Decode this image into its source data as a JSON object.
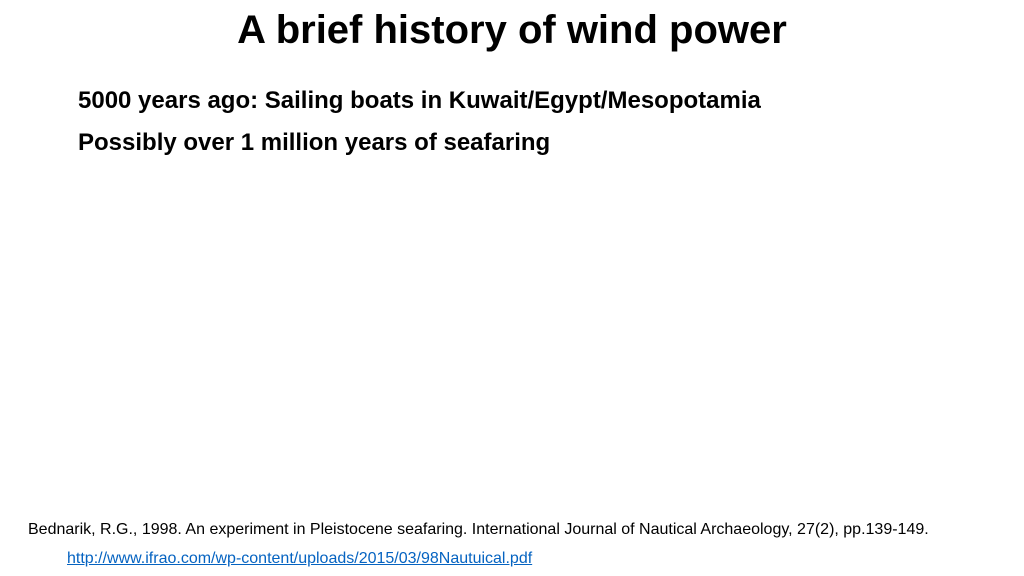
{
  "title": "A brief history of wind power",
  "bullets": [
    "5000 years ago: Sailing boats in Kuwait/Egypt/Mesopotamia",
    "Possibly over 1 million years of seafaring"
  ],
  "reference": "Bednarik, R.G., 1998. An experiment in Pleistocene seafaring. International Journal of Nautical Archaeology, 27(2), pp.139-149.",
  "link": "http://www.ifrao.com/wp-content/uploads/2015/03/98Nautuical.pdf"
}
